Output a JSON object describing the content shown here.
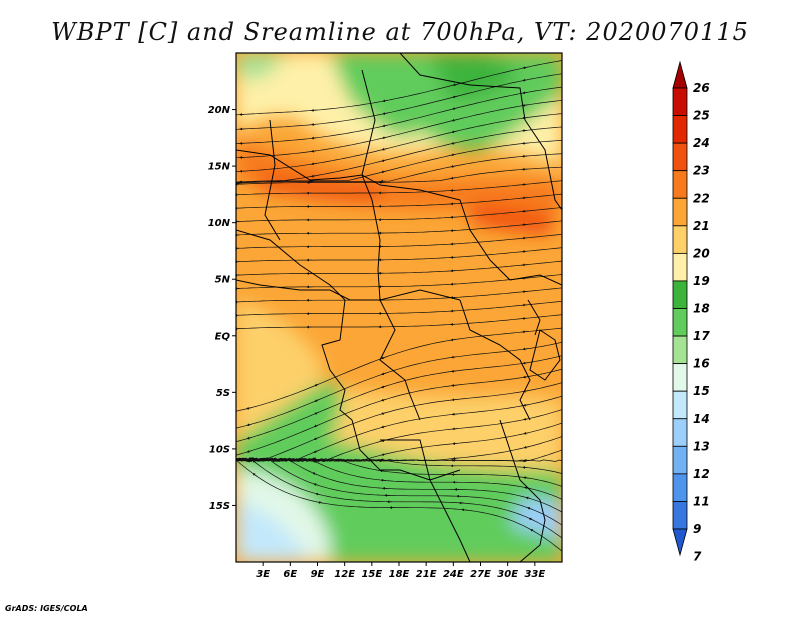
{
  "title": "WBPT [C] and Sreamline at 700hPa, VT: 2020070115",
  "credit": "GrADS: IGES/COLA",
  "map": {
    "lon_range": [
      0,
      36
    ],
    "lat_range": [
      -20,
      25
    ],
    "lon_ticks": [
      {
        "value": 3,
        "label": "3E"
      },
      {
        "value": 6,
        "label": "6E"
      },
      {
        "value": 9,
        "label": "9E"
      },
      {
        "value": 12,
        "label": "12E"
      },
      {
        "value": 15,
        "label": "15E"
      },
      {
        "value": 18,
        "label": "18E"
      },
      {
        "value": 21,
        "label": "21E"
      },
      {
        "value": 24,
        "label": "24E"
      },
      {
        "value": 27,
        "label": "27E"
      },
      {
        "value": 30,
        "label": "30E"
      },
      {
        "value": 33,
        "label": "33E"
      }
    ],
    "lat_ticks": [
      {
        "value": 20,
        "label": "20N"
      },
      {
        "value": 15,
        "label": "15N"
      },
      {
        "value": 10,
        "label": "10N"
      },
      {
        "value": 5,
        "label": "5N"
      },
      {
        "value": 0,
        "label": "EQ"
      },
      {
        "value": -5,
        "label": "5S"
      },
      {
        "value": -10,
        "label": "10S"
      },
      {
        "value": -15,
        "label": "15S"
      }
    ]
  },
  "colorbar": {
    "levels": [
      {
        "label": "26",
        "color": "#a50000"
      },
      {
        "label": "25",
        "color": "#c80c00"
      },
      {
        "label": "24",
        "color": "#e22800"
      },
      {
        "label": "23",
        "color": "#f05010"
      },
      {
        "label": "22",
        "color": "#f77a1c"
      },
      {
        "label": "21",
        "color": "#fba636"
      },
      {
        "label": "20",
        "color": "#fdd06a"
      },
      {
        "label": "19",
        "color": "#fef0a8"
      },
      {
        "label": "18",
        "color": "#3cb43c"
      },
      {
        "label": "17",
        "color": "#60cc5c"
      },
      {
        "label": "16",
        "color": "#a4e294"
      },
      {
        "label": "15",
        "color": "#e2f8e8"
      },
      {
        "label": "14",
        "color": "#c2e8fc"
      },
      {
        "label": "13",
        "color": "#9ccffa"
      },
      {
        "label": "12",
        "color": "#72b2f4"
      },
      {
        "label": "11",
        "color": "#4e94ec"
      },
      {
        "label": "9",
        "color": "#3876e0"
      },
      {
        "label": "7",
        "color": "#2058d0"
      }
    ]
  }
}
